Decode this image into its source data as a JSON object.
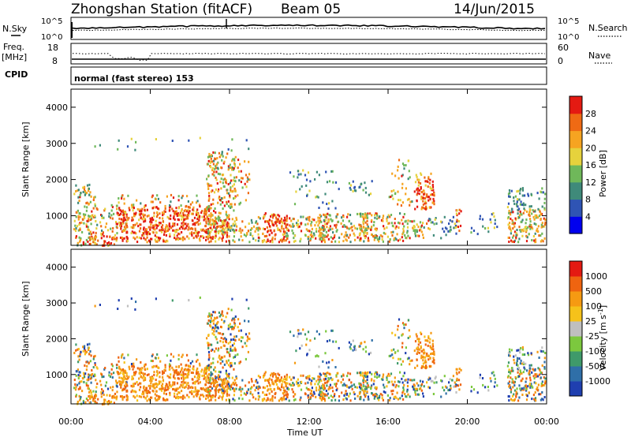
{
  "header": {
    "station": "Zhongshan Station (fitACF)",
    "beam": "Beam 05",
    "date": "14/Jun/2015"
  },
  "noise_panel": {
    "left_label": "N.Sky",
    "right_label": "N.Search",
    "left_ticks": [
      "10^5",
      "10^0"
    ],
    "right_ticks": [
      "10^5",
      "10^0"
    ]
  },
  "freq_panel": {
    "left_label_1": "Freq.",
    "left_label_2": "[MHz]",
    "left_ticks": [
      "18",
      "8"
    ],
    "right_label": "Nave",
    "right_ticks": [
      "60",
      "0"
    ]
  },
  "cpid": {
    "label": "CPID",
    "mode": "normal (fast stereo) 153"
  },
  "chart_data": [
    {
      "type": "heatmap",
      "name": "power",
      "ylabel": "Slant Range [km]",
      "ylim": [
        180,
        4500
      ],
      "yticks": [
        1000,
        2000,
        3000,
        4000
      ],
      "xlabel": "Time UT",
      "xlim": [
        0,
        24
      ],
      "xticks": [
        "00:00",
        "04:00",
        "08:00",
        "12:00",
        "16:00",
        "20:00",
        "00:00"
      ],
      "colorbar": {
        "label": "Power [dB]",
        "ticks": [
          "4",
          "8",
          "12",
          "16",
          "20",
          "24",
          "28"
        ],
        "colors": [
          "#0000ee",
          "#2f54b4",
          "#3f8a7a",
          "#6fb85a",
          "#e6d23c",
          "#f6a421",
          "#ef6a14",
          "#e41a12"
        ]
      }
    },
    {
      "type": "heatmap",
      "name": "velocity",
      "ylabel": "Slant Range [km]",
      "ylim": [
        180,
        4500
      ],
      "yticks": [
        1000,
        2000,
        3000,
        4000
      ],
      "xlabel": "Time UT",
      "xlim": [
        0,
        24
      ],
      "xticks": [
        "00:00",
        "04:00",
        "08:00",
        "12:00",
        "16:00",
        "20:00",
        "00:00"
      ],
      "colorbar": {
        "label": "Velocity [m s^-1]",
        "label_main": "Velocity [m s",
        "label_sup": "-1",
        "label_end": "]",
        "ticks": [
          "1000",
          "500",
          "100",
          "25",
          "-25",
          "-100",
          "-500",
          "-1000"
        ],
        "colors": [
          "#1f3fb0",
          "#2f6fa8",
          "#3f9a6a",
          "#7cc83e",
          "#bfbfbf",
          "#f6c21a",
          "#f69a12",
          "#ef6410",
          "#e41a12"
        ]
      }
    }
  ],
  "scatter_regions": [
    {
      "t0": 0.1,
      "t1": 1.2,
      "r0": 200,
      "r1": 1900,
      "d": 0.5,
      "p": "mid"
    },
    {
      "t0": 0.8,
      "t1": 2.2,
      "r0": 200,
      "r1": 500,
      "d": 0.8,
      "p": "high"
    },
    {
      "t0": 1.2,
      "t1": 2.8,
      "r0": 500,
      "r1": 1300,
      "d": 0.3,
      "p": "mid"
    },
    {
      "t0": 2.2,
      "t1": 5.5,
      "r0": 300,
      "r1": 1300,
      "d": 0.75,
      "p": "high"
    },
    {
      "t0": 2.0,
      "t1": 6.5,
      "r0": 1300,
      "r1": 1600,
      "d": 0.25,
      "p": "mid"
    },
    {
      "t0": 5.5,
      "t1": 7.0,
      "r0": 300,
      "r1": 1300,
      "d": 0.85,
      "p": "high"
    },
    {
      "t0": 6.8,
      "t1": 8.3,
      "r0": 500,
      "r1": 2800,
      "d": 0.55,
      "p": "mid"
    },
    {
      "t0": 7.0,
      "t1": 8.0,
      "r0": 300,
      "r1": 900,
      "d": 0.8,
      "p": "high"
    },
    {
      "t0": 7.9,
      "t1": 9.5,
      "r0": 300,
      "r1": 1000,
      "d": 0.45,
      "p": "mid"
    },
    {
      "t0": 8.2,
      "t1": 9.0,
      "r0": 1200,
      "r1": 2600,
      "d": 0.2,
      "p": "mid"
    },
    {
      "t0": 9.6,
      "t1": 10.9,
      "r0": 300,
      "r1": 1100,
      "d": 0.85,
      "p": "high"
    },
    {
      "t0": 10.8,
      "t1": 13.0,
      "r0": 300,
      "r1": 1000,
      "d": 0.6,
      "p": "mid"
    },
    {
      "t0": 12.5,
      "t1": 15.0,
      "r0": 300,
      "r1": 1100,
      "d": 0.55,
      "p": "mid"
    },
    {
      "t0": 11.0,
      "t1": 13.5,
      "r0": 1200,
      "r1": 2300,
      "d": 0.12,
      "p": "low"
    },
    {
      "t0": 14.5,
      "t1": 17.0,
      "r0": 300,
      "r1": 1100,
      "d": 0.5,
      "p": "mid"
    },
    {
      "t0": 14.0,
      "t1": 15.2,
      "r0": 1600,
      "r1": 2000,
      "d": 0.35,
      "p": "low"
    },
    {
      "t0": 16.0,
      "t1": 17.2,
      "r0": 1300,
      "r1": 2600,
      "d": 0.2,
      "p": "mid"
    },
    {
      "t0": 17.3,
      "t1": 18.3,
      "r0": 1200,
      "r1": 2200,
      "d": 0.75,
      "p": "high"
    },
    {
      "t0": 16.8,
      "t1": 18.0,
      "r0": 400,
      "r1": 900,
      "d": 0.5,
      "p": "mid"
    },
    {
      "t0": 18.0,
      "t1": 19.5,
      "r0": 400,
      "r1": 1000,
      "d": 0.3,
      "p": "low"
    },
    {
      "t0": 19.3,
      "t1": 19.7,
      "r0": 600,
      "r1": 1200,
      "d": 0.5,
      "p": "high"
    },
    {
      "t0": 19.8,
      "t1": 21.5,
      "r0": 500,
      "r1": 1100,
      "d": 0.15,
      "p": "low"
    },
    {
      "t0": 22.0,
      "t1": 23.9,
      "r0": 300,
      "r1": 1200,
      "d": 0.7,
      "p": "mid"
    },
    {
      "t0": 22.0,
      "t1": 23.9,
      "r0": 1200,
      "r1": 1800,
      "d": 0.4,
      "p": "low"
    },
    {
      "t0": 0.5,
      "t1": 9.0,
      "r0": 2800,
      "r1": 3200,
      "d": 0.04,
      "p": "low"
    }
  ]
}
